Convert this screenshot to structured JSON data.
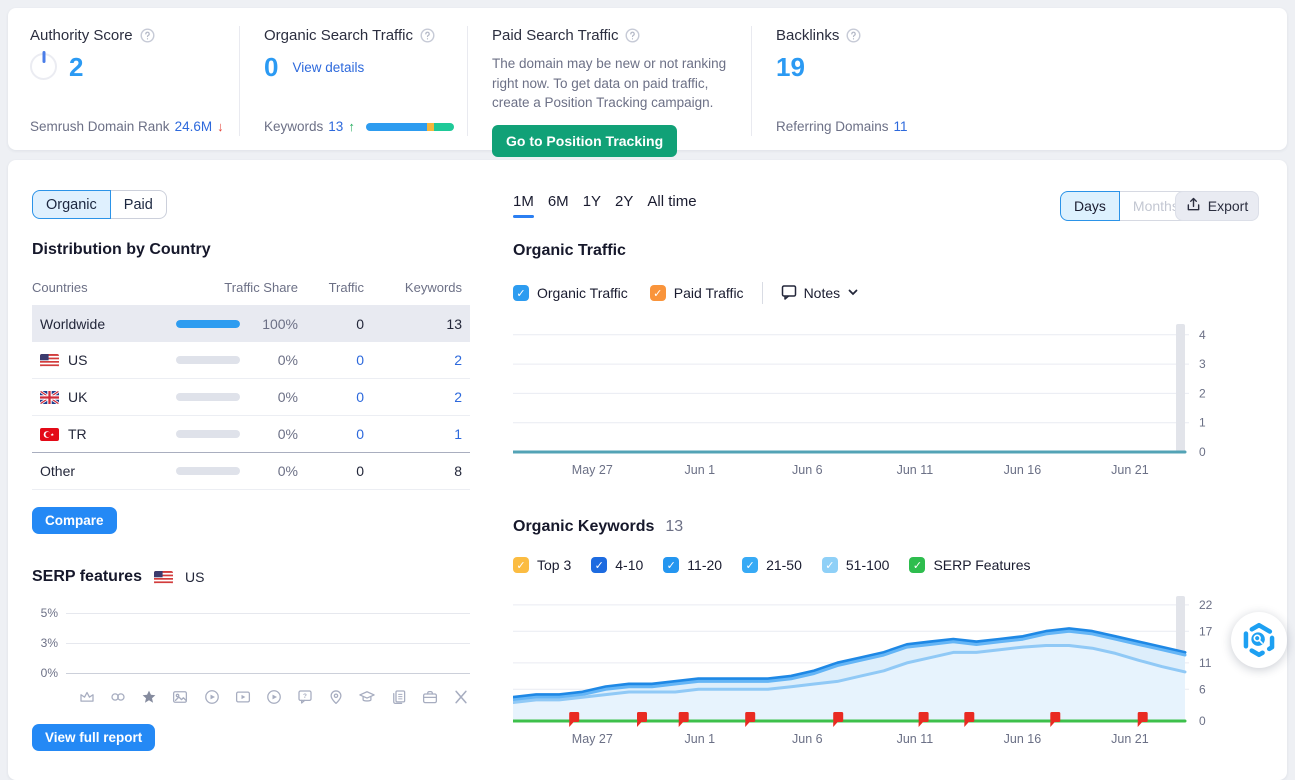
{
  "top_cards": {
    "authority": {
      "title": "Authority Score",
      "value": "2",
      "footer_label": "Semrush Domain Rank",
      "footer_value": "24.6M",
      "trend": "down"
    },
    "organic_traffic": {
      "title": "Organic Search Traffic",
      "value": "0",
      "link_label": "View details",
      "footer_label": "Keywords",
      "footer_value": "13",
      "trend": "up",
      "bar_segments": [
        {
          "name": "blue-segment",
          "color": "#2d9cf0",
          "pct": 70
        },
        {
          "name": "yellow-segment",
          "color": "#f5b63c",
          "pct": 7
        },
        {
          "name": "green-segment",
          "color": "#1fc998",
          "pct": 23
        }
      ]
    },
    "paid_traffic": {
      "title": "Paid Search Traffic",
      "message": "The domain may be new or not ranking right now. To get data on paid traffic, create a Position Tracking campaign.",
      "button_label": "Go to Position Tracking"
    },
    "backlinks": {
      "title": "Backlinks",
      "value": "19",
      "footer_label": "Referring Domains",
      "footer_value": "11"
    }
  },
  "left_panel": {
    "scope_tabs": [
      {
        "label": "Organic",
        "active": true
      },
      {
        "label": "Paid",
        "active": false
      }
    ],
    "country_section": {
      "title": "Distribution by Country",
      "headers": [
        "Countries",
        "Traffic Share",
        "Traffic",
        "Keywords"
      ],
      "rows": [
        {
          "country": "Worldwide",
          "flag": "",
          "share": "100%",
          "share_pct": 100,
          "traffic": "0",
          "keywords": "13",
          "highlight": true,
          "links": false,
          "dark_border": false
        },
        {
          "country": "US",
          "flag": "us",
          "share": "0%",
          "share_pct": 0,
          "traffic": "0",
          "keywords": "2",
          "highlight": false,
          "links": true,
          "dark_border": false
        },
        {
          "country": "UK",
          "flag": "uk",
          "share": "0%",
          "share_pct": 0,
          "traffic": "0",
          "keywords": "2",
          "highlight": false,
          "links": true,
          "dark_border": false
        },
        {
          "country": "TR",
          "flag": "tr",
          "share": "0%",
          "share_pct": 0,
          "traffic": "0",
          "keywords": "1",
          "highlight": false,
          "links": true,
          "dark_border": true
        },
        {
          "country": "Other",
          "flag": "",
          "share": "0%",
          "share_pct": 0,
          "traffic": "0",
          "keywords": "8",
          "highlight": false,
          "links": false,
          "dark_border": false
        }
      ]
    },
    "compare_button_label": "Compare",
    "serp_features": {
      "title": "SERP features",
      "flag": "us",
      "flag_label": "US",
      "icons": [
        "crown-icon",
        "link-icon",
        "star-icon",
        "image-icon",
        "play-circle-icon",
        "video-icon",
        "play-circle-2-icon",
        "question-bubble-icon",
        "location-pin-icon",
        "graduation-cap-icon",
        "news-icon",
        "briefcase-icon",
        "x-twitter-icon"
      ]
    },
    "view_report_button_label": "View full report"
  },
  "right_panel": {
    "period_tabs": [
      {
        "label": "1M",
        "active": true
      },
      {
        "label": "6M",
        "active": false
      },
      {
        "label": "1Y",
        "active": false
      },
      {
        "label": "2Y",
        "active": false
      },
      {
        "label": "All time",
        "active": false
      }
    ],
    "granularity_toggle": [
      {
        "label": "Days",
        "active": true
      },
      {
        "label": "Months",
        "active": false
      }
    ],
    "export_label": "Export",
    "organic_traffic_section": {
      "title": "Organic Traffic",
      "notes_label": "Notes",
      "legend": [
        {
          "label": "Organic Traffic",
          "color": "#2d9cf0",
          "checked": true
        },
        {
          "label": "Paid Traffic",
          "color": "#f9943b",
          "checked": true
        }
      ]
    },
    "organic_keywords_section": {
      "title": "Organic Keywords",
      "count": "13",
      "legend": [
        {
          "label": "Top 3",
          "color": "#fbbc42",
          "checked": true
        },
        {
          "label": "4-10",
          "color": "#1d6be0",
          "checked": true
        },
        {
          "label": "11-20",
          "color": "#2496f0",
          "checked": true
        },
        {
          "label": "21-50",
          "color": "#37aaf5",
          "checked": true
        },
        {
          "label": "51-100",
          "color": "#8fd0f7",
          "checked": true
        },
        {
          "label": "SERP Features",
          "color": "#2ebd4e",
          "checked": true
        }
      ]
    }
  },
  "chart_data": [
    {
      "id": "organic-traffic",
      "type": "line",
      "title": "Organic Traffic",
      "ylim": [
        0,
        4.3
      ],
      "grid": true,
      "legend_position": "top",
      "y_ticks": [
        {
          "label": "4",
          "value": 4
        },
        {
          "label": "3",
          "value": 3
        },
        {
          "label": "2",
          "value": 2
        },
        {
          "label": "1",
          "value": 1
        },
        {
          "label": "0",
          "value": 0
        }
      ],
      "x_ticks": [
        {
          "label": "May 27",
          "pos": 0.118
        },
        {
          "label": "Jun 1",
          "pos": 0.278
        },
        {
          "label": "Jun 6",
          "pos": 0.438
        },
        {
          "label": "Jun 11",
          "pos": 0.598
        },
        {
          "label": "Jun 16",
          "pos": 0.758
        },
        {
          "label": "Jun 21",
          "pos": 0.918
        }
      ],
      "series": [
        {
          "name": "Organic Traffic",
          "color": "#53a3b6",
          "fill": null,
          "values": [
            0,
            0,
            0,
            0,
            0,
            0,
            0,
            0,
            0,
            0,
            0,
            0,
            0,
            0,
            0,
            0,
            0,
            0,
            0,
            0,
            0,
            0,
            0,
            0,
            0,
            0,
            0,
            0,
            0,
            0
          ]
        }
      ]
    },
    {
      "id": "organic-keywords",
      "type": "area",
      "title": "Organic Keywords",
      "ylim": [
        0,
        23.3
      ],
      "grid": true,
      "legend_position": "top",
      "y_ticks": [
        {
          "label": "22",
          "value": 22
        },
        {
          "label": "17",
          "value": 17
        },
        {
          "label": "11",
          "value": 11
        },
        {
          "label": "6",
          "value": 6
        },
        {
          "label": "0",
          "value": 0
        }
      ],
      "x_ticks": [
        {
          "label": "May 27",
          "pos": 0.118
        },
        {
          "label": "Jun 1",
          "pos": 0.278
        },
        {
          "label": "Jun 6",
          "pos": 0.438
        },
        {
          "label": "Jun 11",
          "pos": 0.598
        },
        {
          "label": "Jun 16",
          "pos": 0.758
        },
        {
          "label": "Jun 21",
          "pos": 0.918
        }
      ],
      "note_flags_pos": [
        0.091,
        0.192,
        0.254,
        0.353,
        0.484,
        0.611,
        0.679,
        0.807,
        0.937
      ],
      "series": [
        {
          "name": "keywords-total",
          "color": "#1e88e5",
          "fill": "#cfe7fa",
          "values": [
            4.5,
            5,
            5,
            5.5,
            6.5,
            7,
            7,
            7.5,
            8,
            8,
            8,
            8,
            8.5,
            9.5,
            11,
            12,
            13,
            14.5,
            15,
            15.5,
            15,
            15.5,
            16,
            17,
            17.5,
            17,
            16,
            15,
            14,
            13
          ]
        },
        {
          "name": "keywords-mid",
          "color": "#64b5f6",
          "fill": "#ddeefb",
          "values": [
            4,
            4.5,
            4.5,
            5,
            6,
            6.5,
            6.5,
            7,
            7.5,
            7.5,
            7.5,
            7.5,
            8,
            9,
            10.5,
            11.5,
            12.5,
            14,
            14.5,
            15,
            14.5,
            15,
            15.5,
            16.5,
            17,
            16.5,
            15.5,
            14.5,
            13.5,
            12.5
          ]
        },
        {
          "name": "keywords-low",
          "color": "#90c9f6",
          "fill": "#e7f3fd",
          "values": [
            3.5,
            4,
            4,
            4.5,
            5,
            5.5,
            5.5,
            5.5,
            6,
            6,
            6,
            6,
            6.5,
            7,
            7.5,
            8.5,
            9.5,
            11,
            12,
            13,
            13,
            13.5,
            14,
            14.3,
            14.3,
            13.8,
            12.8,
            11.5,
            10.3,
            9.3
          ]
        },
        {
          "name": "serp-features",
          "color": "#3dc04b",
          "fill": null,
          "values": [
            0,
            0,
            0,
            0,
            0,
            0,
            0,
            0,
            0,
            0,
            0,
            0,
            0,
            0,
            0,
            0,
            0,
            0,
            0,
            0,
            0,
            0,
            0,
            0,
            0,
            0,
            0,
            0,
            0,
            0
          ]
        }
      ]
    },
    {
      "id": "serp-features-mini",
      "type": "line",
      "title": "SERP features",
      "y_ticks": [
        {
          "label": "5%"
        },
        {
          "label": "3%"
        },
        {
          "label": "0%"
        }
      ],
      "series": []
    }
  ]
}
